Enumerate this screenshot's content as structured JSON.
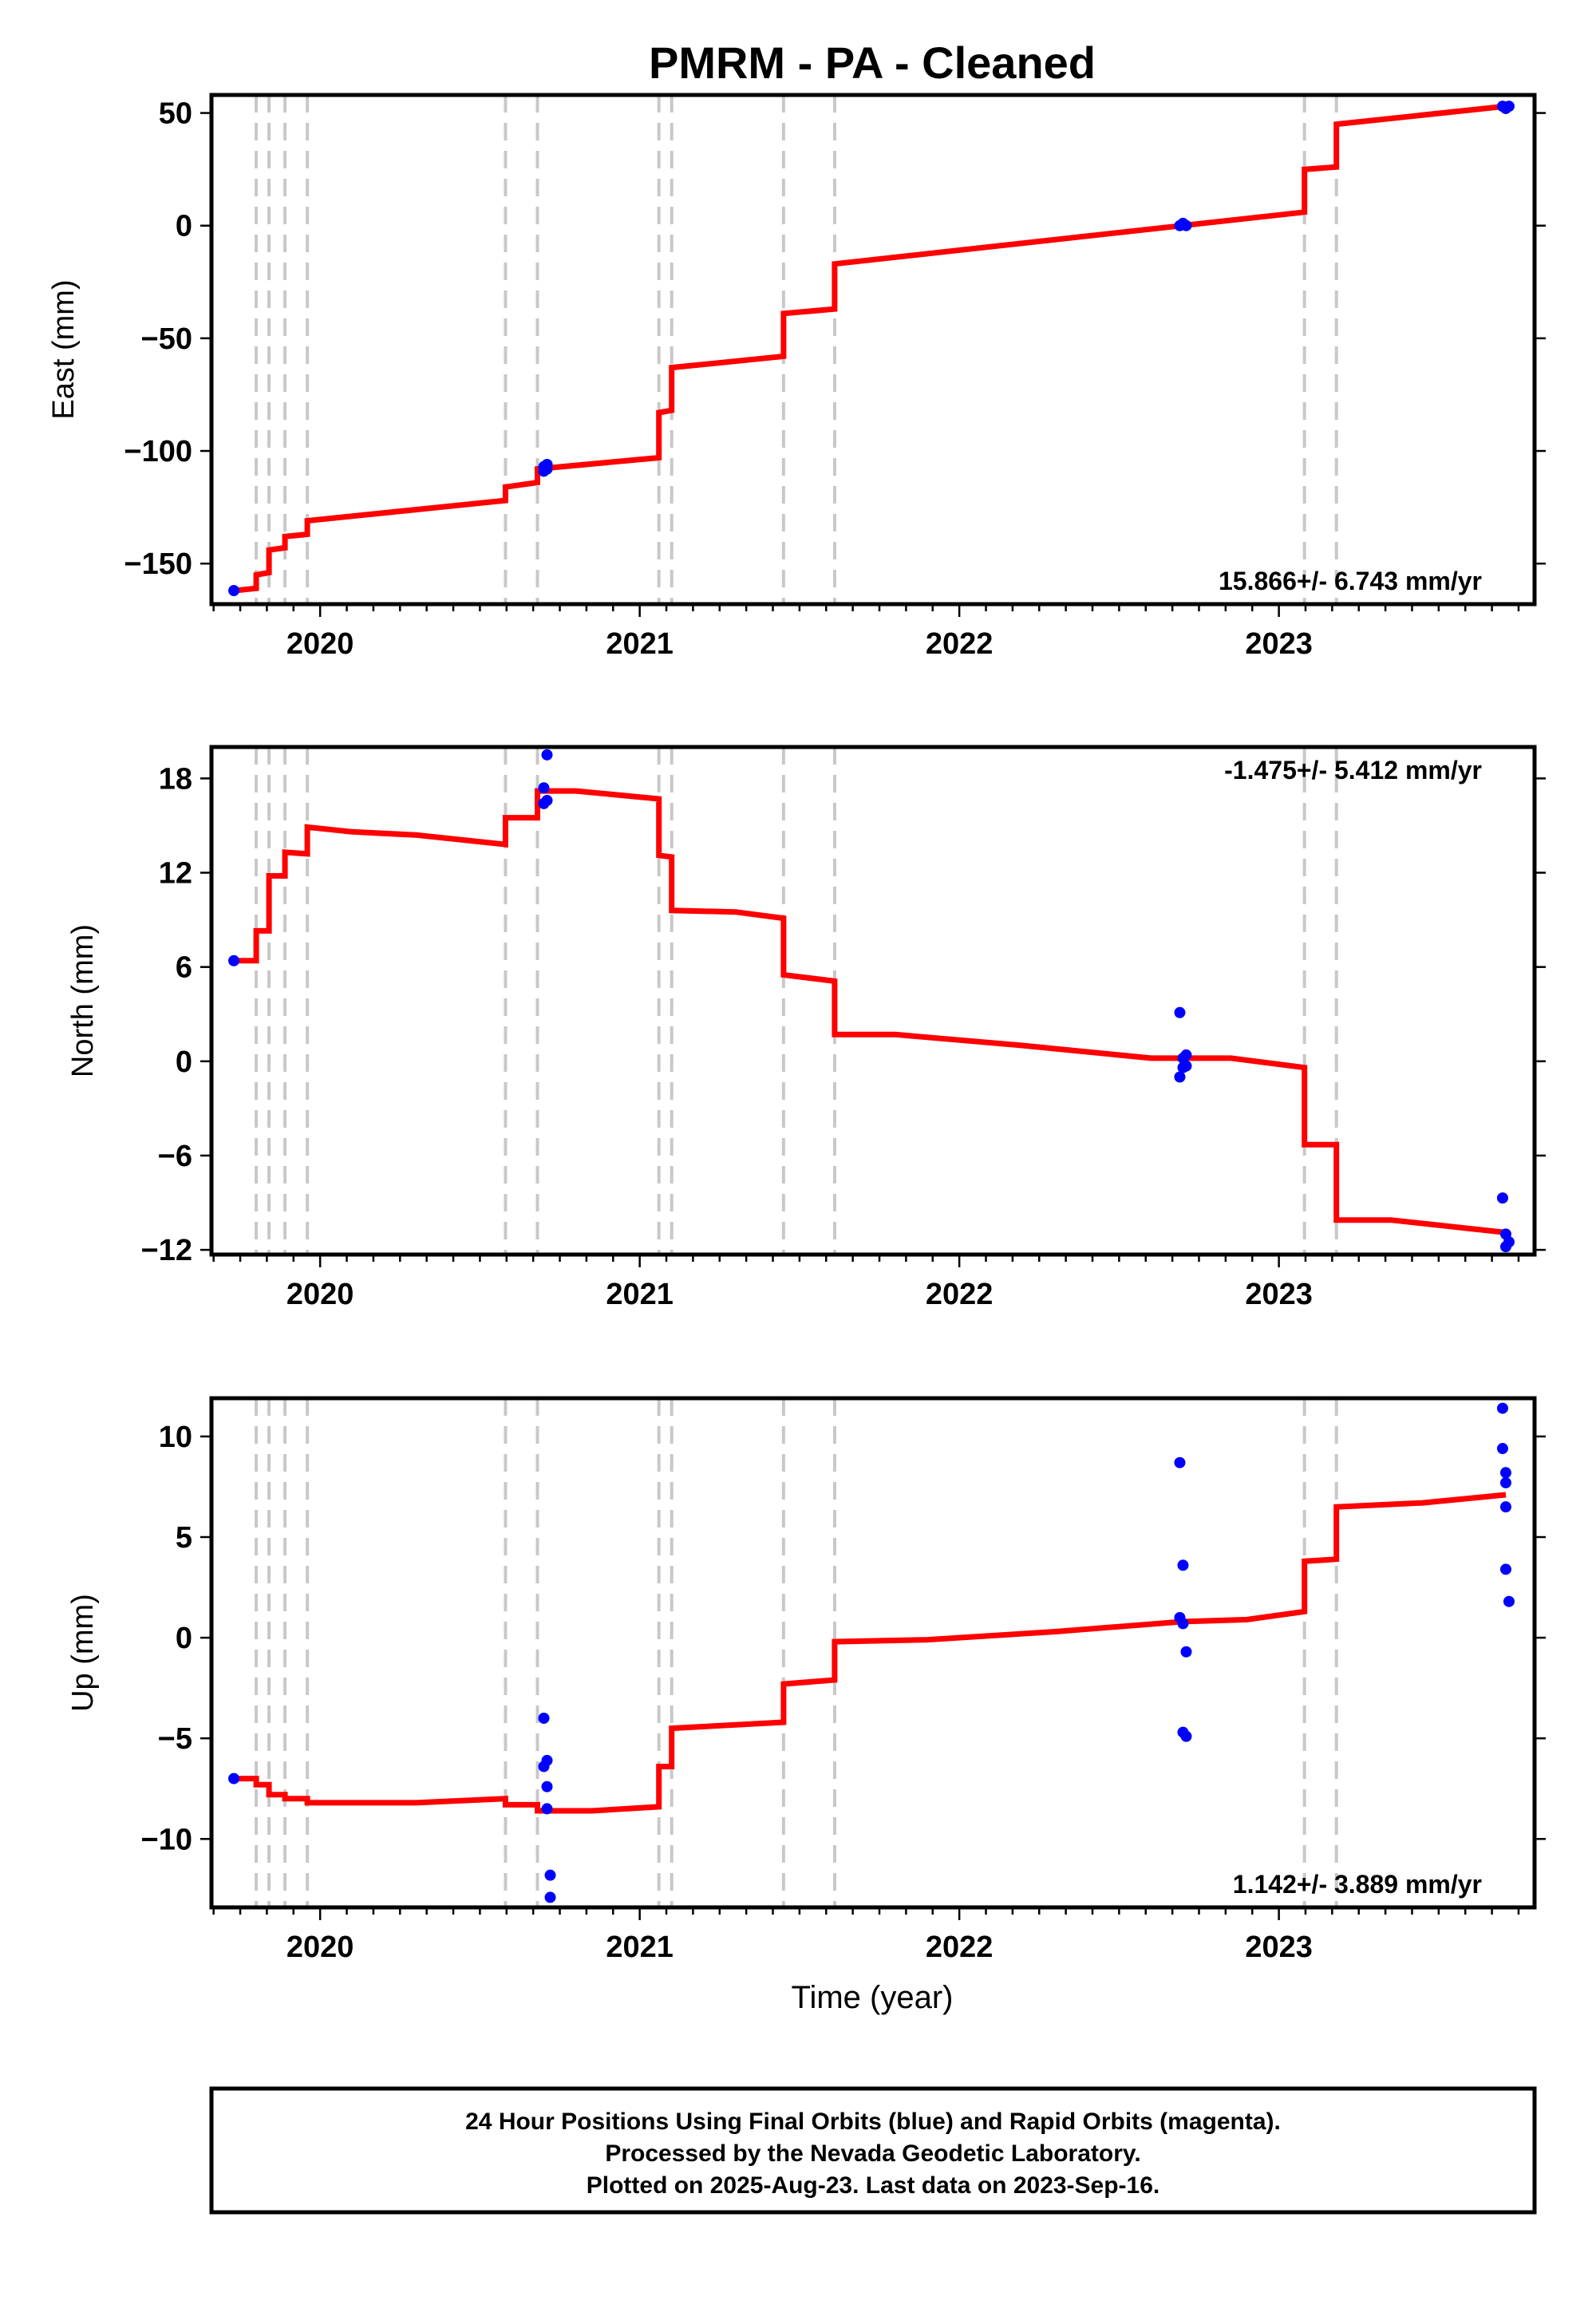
{
  "title": "PMRM  - PA - Cleaned",
  "xlabel": "Time (year)",
  "x_tick_labels": [
    "2020",
    "2021",
    "2022",
    "2023"
  ],
  "footer": {
    "line1": "24 Hour Positions Using Final Orbits (blue) and Rapid Orbits (magenta).",
    "line2": "Processed by the Nevada Geodetic Laboratory.",
    "line3": "Plotted on 2025-Aug-23. Last data on 2023-Sep-16."
  },
  "colors": {
    "model": "#ff0000",
    "final_orbits": "#0000ff",
    "rapid_orbits": "#ff00ff",
    "step_lines": "#c8c8c8"
  },
  "chart_data": [
    {
      "type": "line",
      "component": "east",
      "ylabel": "East (mm)",
      "xlim": [
        2019.66,
        2023.8
      ],
      "ylim": [
        -168,
        58
      ],
      "yticks": [
        50,
        0,
        -50,
        -100,
        -150
      ],
      "ytick_labels": [
        "50",
        "0",
        "−50",
        "−100",
        "−150"
      ],
      "rate_text": "15.866+/- 6.743 mm/yr",
      "rate_position": "bottom-right",
      "step_epochs": [
        2019.8,
        2019.84,
        2019.89,
        2019.96,
        2020.58,
        2020.68,
        2021.06,
        2021.1,
        2021.45,
        2021.61,
        2023.08,
        2023.18
      ],
      "model": {
        "x": [
          2019.73,
          2019.8,
          2019.8,
          2019.84,
          2019.84,
          2019.89,
          2019.89,
          2019.96,
          2019.96,
          2020.58,
          2020.58,
          2020.68,
          2020.68,
          2021.06,
          2021.06,
          2021.1,
          2021.1,
          2021.45,
          2021.45,
          2021.61,
          2021.61,
          2023.08,
          2023.08,
          2023.18,
          2023.18,
          2023.71
        ],
        "y": [
          -162,
          -161,
          -155,
          -154,
          -144,
          -143,
          -138,
          -137,
          -131,
          -122,
          -116,
          -114,
          -108,
          -103,
          -83,
          -82,
          -63,
          -58,
          -39,
          -37,
          -17,
          6,
          25,
          26,
          45,
          53
        ]
      },
      "final_orbits": {
        "x": [
          2019.73,
          2020.7,
          2020.7,
          2020.71,
          2020.71,
          2022.69,
          2022.7,
          2022.71,
          2023.7,
          2023.71,
          2023.72
        ],
        "y": [
          -162,
          -107,
          -109,
          -106,
          -108,
          0,
          1,
          0,
          53,
          52,
          53
        ]
      }
    },
    {
      "type": "line",
      "component": "north",
      "ylabel": "North (mm)",
      "xlim": [
        2019.66,
        2023.8
      ],
      "ylim": [
        -12.3,
        20.0
      ],
      "yticks": [
        18,
        12,
        6,
        0,
        -6,
        -12
      ],
      "ytick_labels": [
        "18",
        "12",
        "6",
        "0",
        "−6",
        "−12"
      ],
      "rate_text": "-1.475+/- 5.412 mm/yr",
      "rate_position": "top-right",
      "step_epochs": [
        2019.8,
        2019.84,
        2019.89,
        2019.96,
        2020.58,
        2020.68,
        2021.06,
        2021.1,
        2021.45,
        2021.61,
        2023.08,
        2023.18
      ],
      "model": {
        "x": [
          2019.73,
          2019.8,
          2019.8,
          2019.84,
          2019.84,
          2019.89,
          2019.89,
          2019.96,
          2019.96,
          2020.1,
          2020.3,
          2020.58,
          2020.58,
          2020.68,
          2020.68,
          2020.8,
          2021.06,
          2021.06,
          2021.1,
          2021.1,
          2021.3,
          2021.45,
          2021.45,
          2021.61,
          2021.61,
          2021.8,
          2022.2,
          2022.6,
          2022.85,
          2023.08,
          2023.08,
          2023.18,
          2023.18,
          2023.35,
          2023.71
        ],
        "y": [
          6.4,
          6.4,
          8.3,
          8.3,
          11.8,
          11.8,
          13.3,
          13.2,
          14.9,
          14.6,
          14.4,
          13.8,
          15.5,
          15.5,
          17.2,
          17.2,
          16.7,
          13.1,
          13.0,
          9.6,
          9.5,
          9.1,
          5.5,
          5.1,
          1.7,
          1.7,
          1.0,
          0.2,
          0.2,
          -0.4,
          -5.3,
          -5.3,
          -10.1,
          -10.1,
          -10.9
        ]
      },
      "final_orbits": {
        "x": [
          2019.73,
          2020.7,
          2020.7,
          2020.71,
          2020.71,
          2022.69,
          2022.69,
          2022.7,
          2022.7,
          2022.71,
          2022.71,
          2023.7,
          2023.71,
          2023.71,
          2023.72
        ],
        "y": [
          6.4,
          17.4,
          16.4,
          19.5,
          16.6,
          3.1,
          -1.0,
          0.2,
          -0.4,
          0.4,
          -0.3,
          -8.7,
          -11.0,
          -11.8,
          -11.5
        ]
      }
    },
    {
      "type": "line",
      "component": "up",
      "ylabel": "Up (mm)",
      "xlim": [
        2019.66,
        2023.8
      ],
      "ylim": [
        -13.4,
        11.9
      ],
      "yticks": [
        10,
        5,
        0,
        -5,
        -10
      ],
      "ytick_labels": [
        "10",
        "5",
        "0",
        "−5",
        "−10"
      ],
      "rate_text": "1.142+/- 3.889 mm/yr",
      "rate_position": "bottom-right",
      "step_epochs": [
        2019.8,
        2019.84,
        2019.89,
        2019.96,
        2020.58,
        2020.68,
        2021.06,
        2021.1,
        2021.45,
        2021.61,
        2023.08,
        2023.18
      ],
      "model": {
        "x": [
          2019.73,
          2019.8,
          2019.8,
          2019.84,
          2019.84,
          2019.89,
          2019.89,
          2019.96,
          2019.96,
          2020.3,
          2020.58,
          2020.58,
          2020.68,
          2020.68,
          2020.85,
          2021.06,
          2021.06,
          2021.1,
          2021.1,
          2021.45,
          2021.45,
          2021.61,
          2021.61,
          2021.9,
          2022.3,
          2022.7,
          2022.9,
          2023.08,
          2023.08,
          2023.18,
          2023.18,
          2023.45,
          2023.71
        ],
        "y": [
          -7.0,
          -7.0,
          -7.3,
          -7.3,
          -7.8,
          -7.8,
          -8.0,
          -8.0,
          -8.2,
          -8.2,
          -8.0,
          -8.3,
          -8.3,
          -8.6,
          -8.6,
          -8.4,
          -6.4,
          -6.4,
          -4.5,
          -4.2,
          -2.3,
          -2.1,
          -0.2,
          -0.1,
          0.3,
          0.8,
          0.9,
          1.3,
          3.8,
          3.9,
          6.5,
          6.7,
          7.1
        ]
      },
      "final_orbits": {
        "x": [
          2019.73,
          2020.7,
          2020.7,
          2020.71,
          2020.71,
          2020.71,
          2020.72,
          2020.72,
          2022.69,
          2022.69,
          2022.7,
          2022.7,
          2022.7,
          2022.71,
          2022.71,
          2023.7,
          2023.7,
          2023.71,
          2023.71,
          2023.71,
          2023.71,
          2023.72
        ],
        "y": [
          -7.0,
          -4.0,
          -6.4,
          -6.1,
          -7.4,
          -8.5,
          -11.8,
          -12.9,
          8.7,
          1.0,
          3.6,
          0.7,
          -4.7,
          -4.9,
          -0.7,
          11.4,
          9.4,
          8.2,
          7.7,
          6.5,
          3.4,
          1.8
        ]
      }
    }
  ]
}
